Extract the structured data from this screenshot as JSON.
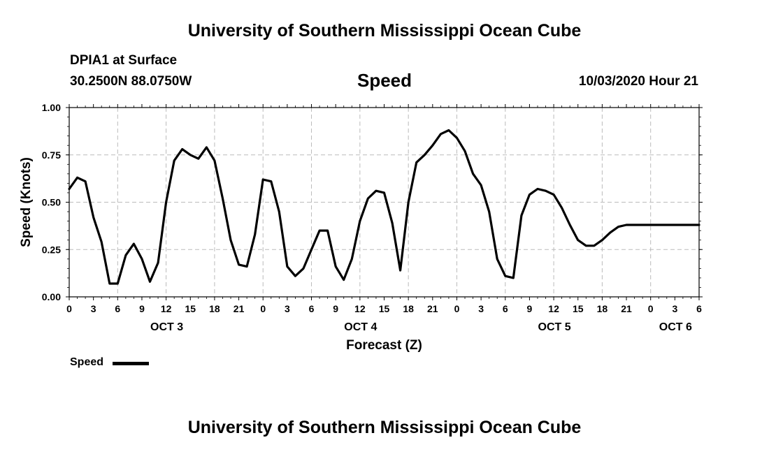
{
  "header": {
    "top_title": "University of Southern Mississippi Ocean Cube",
    "station": "DPIA1 at Surface",
    "coords": "30.2500N 88.0750W",
    "chart_title": "Speed",
    "datetime": "10/03/2020 Hour 21"
  },
  "footer": {
    "bottom_title": "University of Southern Mississippi Ocean Cube"
  },
  "legend": {
    "label": "Speed"
  },
  "colors": {
    "line": "#000000",
    "grid": "#bbbbbb",
    "background": "#ffffff"
  },
  "chart_data": {
    "type": "line",
    "title": "Speed",
    "xlabel": "Forecast (Z)",
    "ylabel": "Speed (Knots)",
    "ylim": [
      0,
      1
    ],
    "yticks": [
      "0.00",
      "0.25",
      "0.50",
      "0.75",
      "1.00"
    ],
    "xlim": [
      0,
      78
    ],
    "xlim_note_hours_from": "OCT 3 00Z",
    "xtick_labels": [
      "0",
      "3",
      "6",
      "9",
      "12",
      "15",
      "18",
      "21",
      "0",
      "3",
      "6",
      "9",
      "12",
      "15",
      "18",
      "21",
      "0",
      "3",
      "6",
      "9",
      "12",
      "15",
      "18",
      "21",
      "0",
      "3",
      "6"
    ],
    "day_labels": [
      {
        "label": "OCT 3",
        "hour": 12
      },
      {
        "label": "OCT 4",
        "hour": 36
      },
      {
        "label": "OCT 5",
        "hour": 60
      },
      {
        "label": "OCT 6",
        "hour": 75
      }
    ],
    "grid": true,
    "legend_position": "bottom-left",
    "series": [
      {
        "name": "Speed",
        "x": [
          0,
          1,
          2,
          3,
          4,
          5,
          6,
          7,
          8,
          9,
          10,
          11,
          12,
          13,
          14,
          15,
          16,
          17,
          18,
          19,
          20,
          21,
          22,
          23,
          24,
          25,
          26,
          27,
          28,
          29,
          30,
          31,
          32,
          33,
          34,
          35,
          36,
          37,
          38,
          39,
          40,
          41,
          42,
          43,
          44,
          45,
          46,
          47,
          48,
          49,
          50,
          51,
          52,
          53,
          54,
          55,
          56,
          57,
          58,
          59,
          60,
          61,
          62,
          63,
          64,
          65,
          66,
          67,
          68,
          69,
          70,
          71,
          72,
          73,
          74,
          75,
          76,
          77,
          78
        ],
        "values": [
          0.57,
          0.63,
          0.61,
          0.42,
          0.29,
          0.07,
          0.07,
          0.22,
          0.28,
          0.2,
          0.08,
          0.18,
          0.5,
          0.72,
          0.78,
          0.75,
          0.73,
          0.79,
          0.72,
          0.52,
          0.3,
          0.17,
          0.16,
          0.33,
          0.62,
          0.61,
          0.45,
          0.16,
          0.11,
          0.15,
          0.25,
          0.35,
          0.35,
          0.16,
          0.09,
          0.2,
          0.4,
          0.52,
          0.56,
          0.55,
          0.39,
          0.14,
          0.5,
          0.71,
          0.75,
          0.8,
          0.86,
          0.88,
          0.84,
          0.77,
          0.65,
          0.59,
          0.45,
          0.2,
          0.11,
          0.1,
          0.43,
          0.54,
          0.57,
          0.56,
          0.54,
          0.47,
          0.38,
          0.3,
          0.27,
          0.27,
          0.3,
          0.34,
          0.37,
          0.38,
          0.38,
          0.38,
          0.38,
          0.38,
          0.38,
          0.38,
          0.38,
          0.38,
          0.38
        ]
      }
    ]
  }
}
